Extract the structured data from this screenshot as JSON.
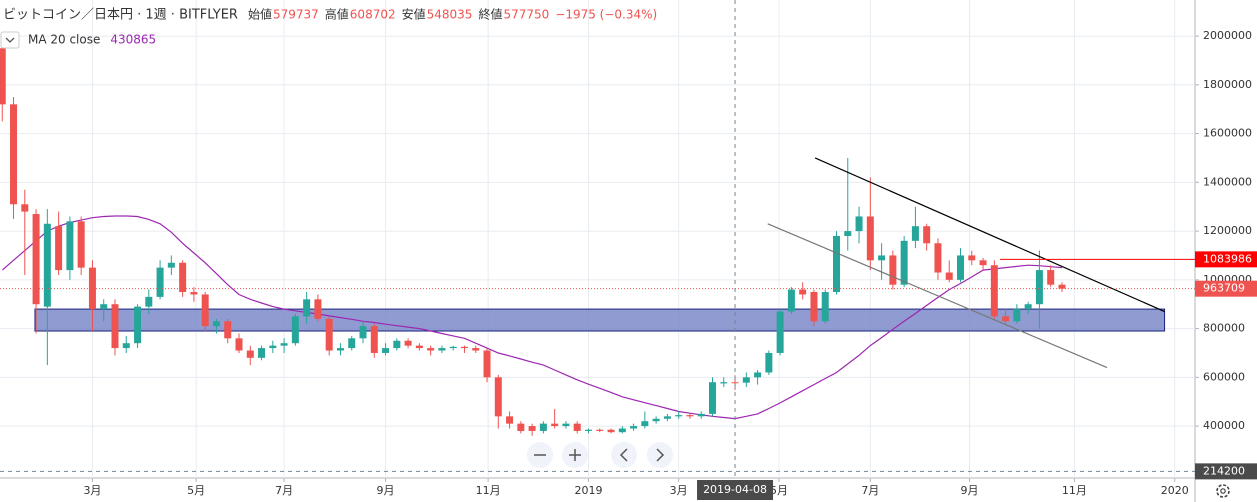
{
  "chart_data": {
    "type": "candlestick",
    "title": "ビットコイン／日本円 · 1週 · BITFLYER",
    "ohlc_labels": [
      "始値",
      "高値",
      "安値",
      "終値"
    ],
    "change": "−1975 (−0.34%)",
    "up_color": "#26a69a",
    "down_color": "#ef5350",
    "open": [
      1950000,
      1720000,
      1310000,
      1270000,
      890000,
      1220000,
      1040000,
      1240000,
      1050000,
      880000,
      900000,
      720000,
      740000,
      890000,
      930000,
      1050000,
      1070000,
      950000,
      940000,
      810000,
      830000,
      760000,
      710000,
      680000,
      720000,
      730000,
      740000,
      850000,
      920000,
      840000,
      710000,
      720000,
      760000,
      810000,
      700000,
      720000,
      750000,
      730000,
      720000,
      710000,
      720000,
      725000,
      720000,
      710000,
      600000,
      440000,
      410000,
      400000,
      380000,
      410000,
      400000,
      410000,
      380000,
      385000,
      385000,
      375000,
      390000,
      400000,
      420000,
      430000,
      440000,
      445000,
      440000,
      450000,
      575000,
      579737,
      578000,
      600000,
      620000,
      700000,
      870000,
      960000,
      950000,
      830000,
      950000,
      1180000,
      1200000,
      1260000,
      1080000,
      1100000,
      980000,
      1160000,
      1220000,
      1150000,
      1030000,
      1000000,
      1100000,
      1080000,
      1060000,
      850000,
      830000,
      880000,
      900000,
      1040000,
      980000
    ],
    "high": [
      2000000,
      1750000,
      1370000,
      1290000,
      1290000,
      1280000,
      1260000,
      1260000,
      1080000,
      920000,
      920000,
      770000,
      900000,
      960000,
      1080000,
      1100000,
      1080000,
      970000,
      950000,
      840000,
      840000,
      780000,
      730000,
      730000,
      750000,
      760000,
      860000,
      950000,
      940000,
      850000,
      740000,
      770000,
      830000,
      820000,
      740000,
      760000,
      760000,
      740000,
      730000,
      730000,
      730000,
      730000,
      730000,
      720000,
      610000,
      460000,
      420000,
      410000,
      420000,
      470000,
      420000,
      420000,
      390000,
      390000,
      390000,
      400000,
      410000,
      460000,
      440000,
      450000,
      460000,
      450000,
      460000,
      600000,
      600000,
      608702,
      620000,
      630000,
      710000,
      880000,
      970000,
      990000,
      960000,
      960000,
      1200000,
      1500000,
      1300000,
      1420000,
      1150000,
      1120000,
      1180000,
      1300000,
      1230000,
      1170000,
      1080000,
      1130000,
      1120000,
      1090000,
      1080000,
      880000,
      900000,
      910000,
      1120000,
      1060000,
      990000
    ],
    "low": [
      1650000,
      1250000,
      1020000,
      780000,
      650000,
      1020000,
      1000000,
      1020000,
      790000,
      830000,
      690000,
      700000,
      720000,
      860000,
      920000,
      1020000,
      930000,
      910000,
      790000,
      780000,
      740000,
      700000,
      650000,
      670000,
      700000,
      700000,
      730000,
      820000,
      830000,
      690000,
      690000,
      710000,
      740000,
      680000,
      690000,
      710000,
      720000,
      710000,
      690000,
      700000,
      710000,
      700000,
      700000,
      580000,
      390000,
      390000,
      370000,
      360000,
      370000,
      390000,
      390000,
      370000,
      370000,
      375000,
      370000,
      370000,
      380000,
      390000,
      410000,
      420000,
      430000,
      430000,
      430000,
      440000,
      560000,
      548035,
      560000,
      570000,
      610000,
      690000,
      860000,
      920000,
      810000,
      820000,
      940000,
      1120000,
      1150000,
      1040000,
      1000000,
      960000,
      970000,
      1130000,
      1120000,
      1000000,
      990000,
      990000,
      1060000,
      1040000,
      840000,
      820000,
      820000,
      860000,
      800000,
      970000,
      950000
    ],
    "close": [
      1720000,
      1310000,
      1280000,
      900000,
      1230000,
      1040000,
      1240000,
      1050000,
      880000,
      900000,
      720000,
      740000,
      890000,
      930000,
      1050000,
      1070000,
      950000,
      940000,
      810000,
      830000,
      760000,
      710000,
      680000,
      720000,
      730000,
      740000,
      850000,
      920000,
      840000,
      710000,
      720000,
      760000,
      810000,
      700000,
      720000,
      750000,
      730000,
      720000,
      710000,
      720000,
      725000,
      720000,
      710000,
      600000,
      440000,
      410000,
      380000,
      380000,
      410000,
      400000,
      410000,
      380000,
      385000,
      380000,
      375000,
      390000,
      400000,
      420000,
      430000,
      440000,
      445000,
      440000,
      450000,
      580000,
      580000,
      577750,
      600000,
      620000,
      700000,
      870000,
      960000,
      940000,
      830000,
      950000,
      1180000,
      1200000,
      1260000,
      1080000,
      1100000,
      980000,
      1160000,
      1220000,
      1150000,
      1030000,
      1000000,
      1100000,
      1080000,
      1060000,
      850000,
      830000,
      880000,
      900000,
      1040000,
      980000,
      963709
    ],
    "ma": {
      "name": "MA 20 close",
      "color": "#9c27b0",
      "values": [
        1040000,
        1080000,
        1120000,
        1160000,
        1200000,
        1220000,
        1235000,
        1245000,
        1255000,
        1260000,
        1262000,
        1262000,
        1260000,
        1248000,
        1230000,
        1195000,
        1150000,
        1110000,
        1070000,
        1025000,
        980000,
        940000,
        920000,
        905000,
        890000,
        880000,
        873000,
        866000,
        860000,
        852000,
        845000,
        838000,
        830000,
        825000,
        818000,
        812000,
        806000,
        800000,
        790000,
        780000,
        770000,
        760000,
        740000,
        720000,
        700000,
        688000,
        675000,
        662000,
        650000,
        630000,
        610000,
        590000,
        572000,
        555000,
        538000,
        520000,
        508000,
        496000,
        484000,
        472000,
        460000,
        453000,
        446000,
        440000,
        435000,
        430865,
        440000,
        450000,
        472000,
        495000,
        520000,
        545000,
        570000,
        595000,
        620000,
        655000,
        690000,
        730000,
        763000,
        797000,
        830000,
        862000,
        895000,
        928000,
        960000,
        985000,
        1012000,
        1040000,
        1045000,
        1050000,
        1055000,
        1060000,
        1058000,
        1054000,
        1050000
      ]
    },
    "xlim": [
      -0.2,
      105.8
    ],
    "ylim": [
      187000,
      2148000
    ],
    "yticks": [
      400000,
      600000,
      800000,
      1000000,
      1200000,
      1400000,
      1600000,
      1800000,
      2000000
    ],
    "xticks": [
      {
        "value": 8,
        "label": "3月"
      },
      {
        "value": 17.2,
        "label": "5月"
      },
      {
        "value": 25,
        "label": "7月"
      },
      {
        "value": 34,
        "label": "9月"
      },
      {
        "value": 43.1,
        "label": "11月"
      },
      {
        "value": 52,
        "label": "2019"
      },
      {
        "value": 60,
        "label": "3月"
      },
      {
        "value": 68.9,
        "label": "5月"
      },
      {
        "value": 77,
        "label": "7月"
      },
      {
        "value": 85.8,
        "label": "9月"
      },
      {
        "value": 95.1,
        "label": "11月"
      },
      {
        "value": 104,
        "label": "2020"
      }
    ],
    "grid": true,
    "zone": {
      "x": [
        2.9,
        103.1
      ],
      "y": [
        790000,
        880000
      ],
      "color": "#7b89c9"
    },
    "trend_lines": [
      {
        "x": [
          72.1,
          103.1
        ],
        "y": [
          1500000,
          870000
        ],
        "color": "#000000"
      },
      {
        "x": [
          67.9,
          98
        ],
        "y": [
          1230000,
          640000
        ],
        "color": "#777777"
      }
    ],
    "level": {
      "value": 1083986,
      "from": 88.5,
      "color": "#ff0000"
    },
    "crosshair": {
      "index": 65,
      "label": "2019-04-08",
      "price": 214200
    }
  }
}
